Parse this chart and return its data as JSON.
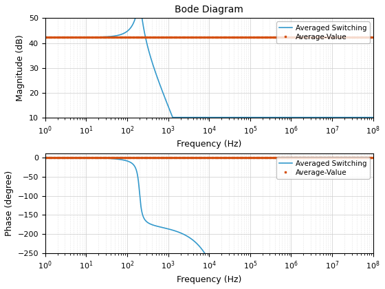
{
  "title": "Bode Diagram",
  "xlabel": "Frequency (Hz)",
  "ylabel_mag": "Magnitude (dB)",
  "ylabel_phase": "Phase (degree)",
  "freq_range": [
    1,
    100000000.0
  ],
  "mag_ylim": [
    10,
    50
  ],
  "phase_ylim": [
    -250,
    10
  ],
  "avg_value_mag": 42.3,
  "avg_value_phase": 0.0,
  "color_switching": "#3399cc",
  "color_avg": "#d45010",
  "legend_labels": [
    "Averaged Switching",
    "Average-Value"
  ],
  "lc_freq": 200,
  "Q": 4.5,
  "dc_gain_db": 42.3,
  "mag_floor": 10.2,
  "delay_T": 2.5e-05,
  "num_markers": 200,
  "grid_color": "#cccccc",
  "grid_major_style": "-",
  "grid_minor_style": ":",
  "yticks_mag": [
    10,
    20,
    30,
    40,
    50
  ],
  "yticks_phase": [
    0,
    -50,
    -100,
    -150,
    -200,
    -250
  ],
  "marker_size": 2.0,
  "line_width": 1.2
}
